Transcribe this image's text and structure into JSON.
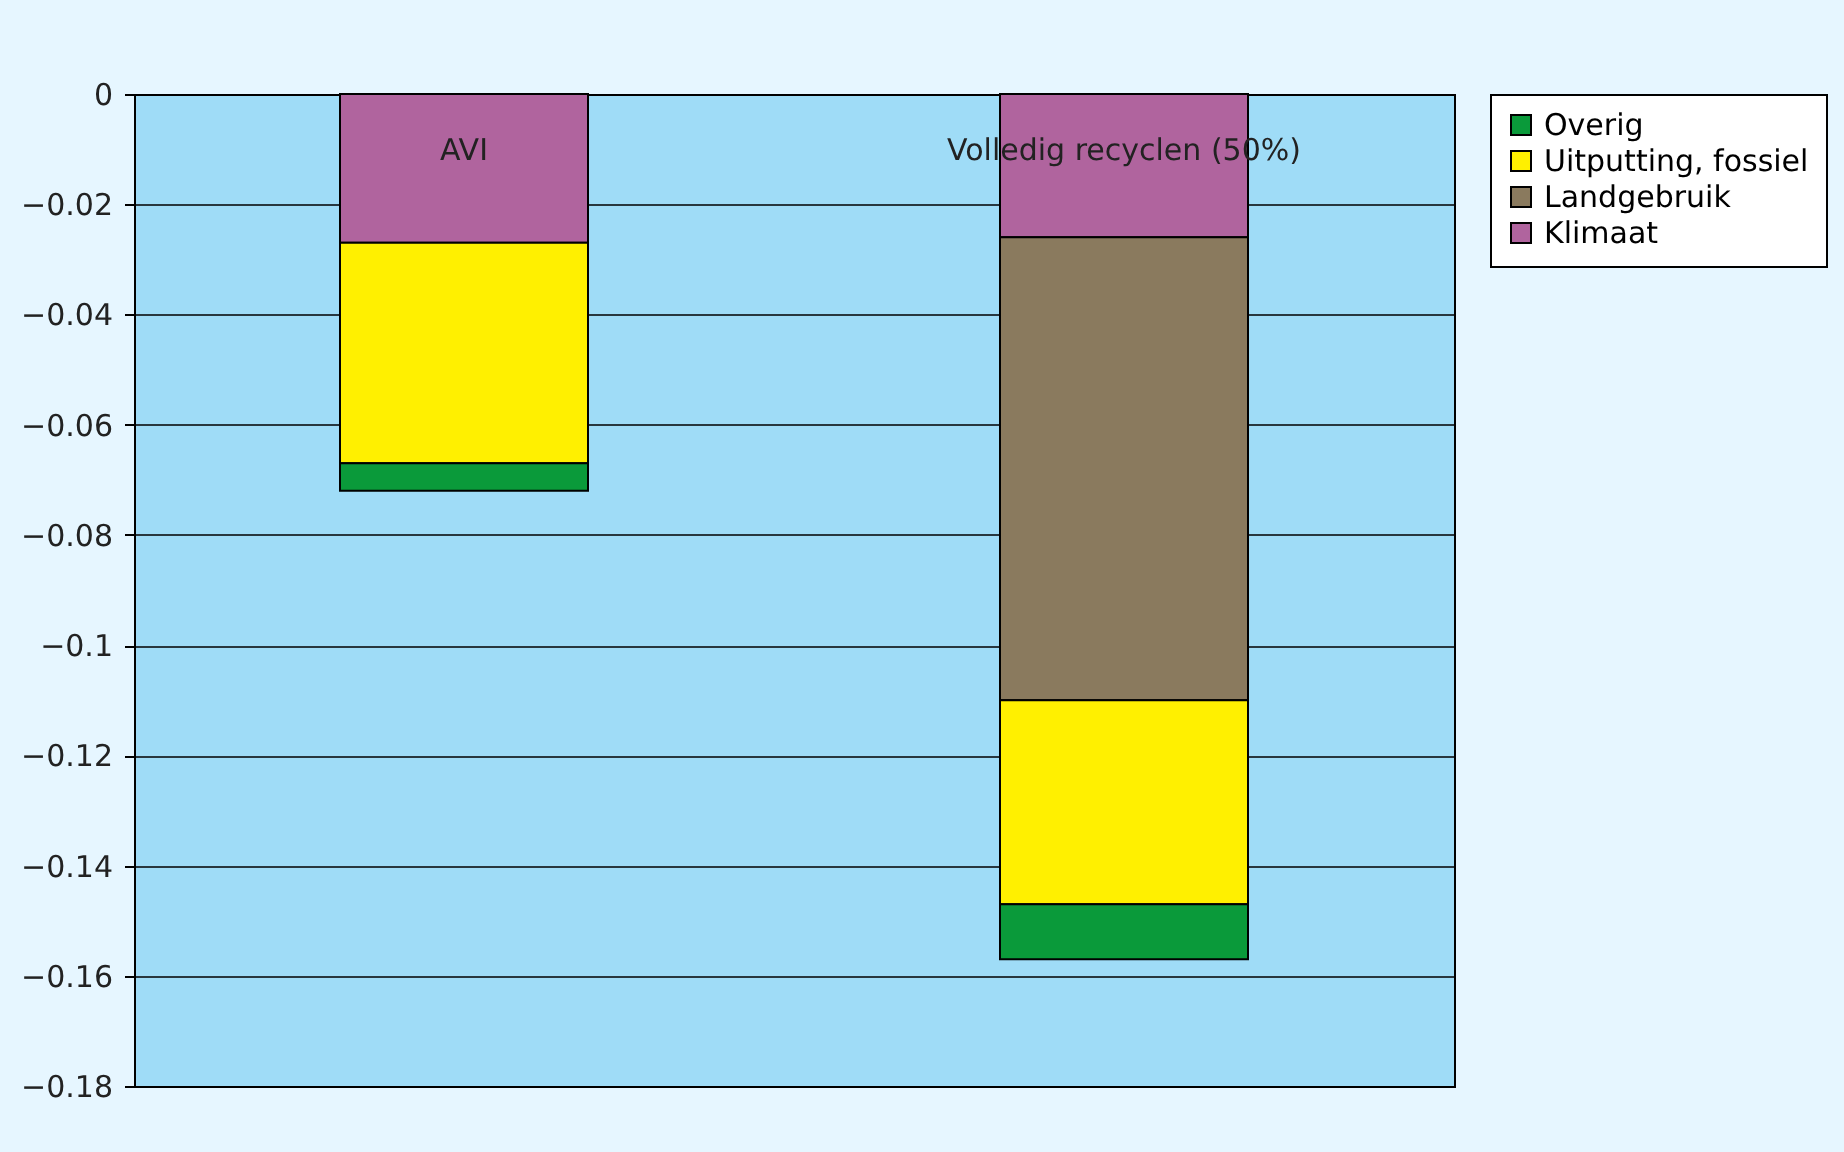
{
  "chart_data": {
    "type": "bar",
    "stacked": true,
    "categories": [
      "AVI",
      "Volledig recyclen (50%)"
    ],
    "series": [
      {
        "name": "Klimaat",
        "color": "#b0649e",
        "values": [
          -0.027,
          -0.026
        ]
      },
      {
        "name": "Landgebruik",
        "color": "#8a7a5e",
        "values": [
          null,
          -0.084
        ]
      },
      {
        "name": "Uitputting, fossiel",
        "color": "#fff000",
        "values": [
          -0.04,
          -0.037
        ]
      },
      {
        "name": "Overig",
        "color": "#0a9a3a",
        "values": [
          -0.005,
          -0.01
        ]
      }
    ],
    "ylim": [
      -0.18,
      0
    ],
    "yticks": [
      -0.18,
      -0.16,
      -0.14,
      -0.12,
      -0.1,
      -0.08,
      -0.06,
      -0.04,
      -0.02,
      0
    ],
    "grid": "y",
    "legend": "right"
  }
}
